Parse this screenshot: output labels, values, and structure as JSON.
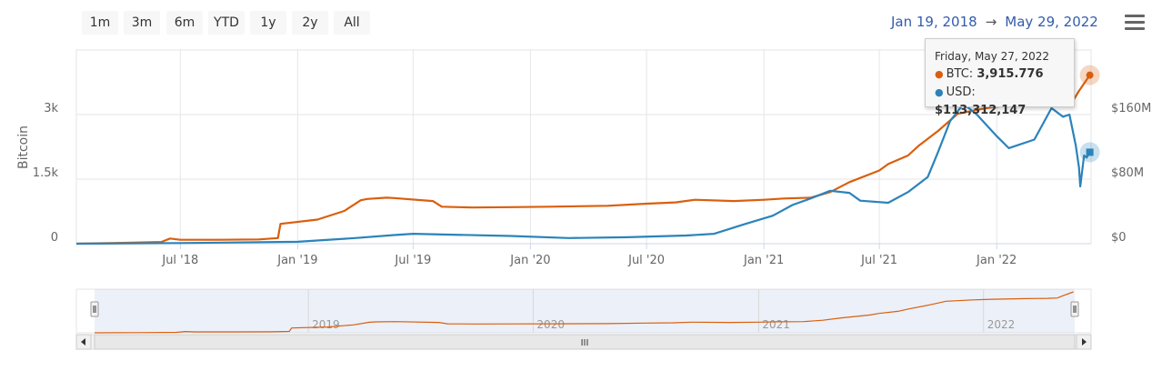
{
  "range_buttons": [
    "1m",
    "3m",
    "6m",
    "YTD",
    "1y",
    "2y",
    "All"
  ],
  "date_range": {
    "from": "Jan 19, 2018",
    "arrow": "→",
    "to": "May 29, 2022"
  },
  "tooltip": {
    "date": "Friday, May 27, 2022",
    "btc_label": "BTC:",
    "btc_value": "3,915.776",
    "usd_label": "USD:",
    "usd_value": "$113,312,147"
  },
  "navigator": {
    "scroll_label": "III",
    "years": [
      "2019",
      "2020",
      "2021",
      "2022"
    ]
  },
  "chart_data": {
    "type": "line",
    "ylabel_left": "Bitcoin",
    "yticks_left": [
      "0",
      "1.5k",
      "3k"
    ],
    "yticks_right": [
      "$0",
      "$80M",
      "$160M"
    ],
    "ylim_left": [
      0,
      4500
    ],
    "ylim_right": [
      0,
      240000000
    ],
    "xticks": [
      "Jul '18",
      "Jan '19",
      "Jul '19",
      "Jan '20",
      "Jul '20",
      "Jan '21",
      "Jul '21",
      "Jan '22"
    ],
    "colors": {
      "btc": "#d95f0e",
      "usd": "#2b83ba"
    },
    "series": [
      {
        "name": "BTC",
        "axis": "left",
        "x": [
          "2018-01-19",
          "2018-04-01",
          "2018-06-01",
          "2018-06-15",
          "2018-07-01",
          "2018-09-01",
          "2018-11-01",
          "2018-12-01",
          "2018-12-05",
          "2019-02-01",
          "2019-03-15",
          "2019-04-10",
          "2019-04-20",
          "2019-05-20",
          "2019-06-01",
          "2019-08-01",
          "2019-08-15",
          "2019-10-01",
          "2019-12-01",
          "2020-02-01",
          "2020-05-01",
          "2020-07-01",
          "2020-08-15",
          "2020-09-15",
          "2020-11-15",
          "2021-01-01",
          "2021-02-01",
          "2021-03-15",
          "2021-04-15",
          "2021-05-15",
          "2021-07-01",
          "2021-07-15",
          "2021-08-15",
          "2021-09-01",
          "2021-10-01",
          "2021-11-01",
          "2021-12-15",
          "2022-01-15",
          "2022-03-01",
          "2022-04-15",
          "2022-05-01",
          "2022-05-10",
          "2022-05-27"
        ],
        "values": [
          0,
          20,
          40,
          120,
          90,
          90,
          100,
          130,
          460,
          560,
          760,
          1010,
          1040,
          1070,
          1060,
          990,
          860,
          840,
          850,
          860,
          880,
          930,
          960,
          1020,
          990,
          1020,
          1050,
          1070,
          1200,
          1430,
          1700,
          1850,
          2050,
          2280,
          2620,
          3020,
          3150,
          3210,
          3260,
          3300,
          3330,
          3550,
          3916
        ]
      },
      {
        "name": "USD",
        "axis": "left",
        "x": [
          "2018-01-19",
          "2018-07-01",
          "2019-01-01",
          "2019-04-01",
          "2019-06-01",
          "2019-07-01",
          "2019-09-01",
          "2019-12-01",
          "2020-03-01",
          "2020-06-01",
          "2020-09-01",
          "2020-10-15",
          "2020-12-01",
          "2021-01-15",
          "2021-02-15",
          "2021-03-15",
          "2021-04-15",
          "2021-05-15",
          "2021-06-01",
          "2021-07-15",
          "2021-08-15",
          "2021-09-15",
          "2021-10-01",
          "2021-10-20",
          "2021-11-10",
          "2021-12-01",
          "2022-01-01",
          "2022-01-20",
          "2022-03-01",
          "2022-03-28",
          "2022-04-15",
          "2022-04-25",
          "2022-05-05",
          "2022-05-10",
          "2022-05-12",
          "2022-05-18",
          "2022-05-22",
          "2022-05-27"
        ],
        "values": [
          0,
          15,
          45,
          130,
          200,
          230,
          210,
          180,
          130,
          150,
          190,
          230,
          450,
          650,
          900,
          1050,
          1230,
          1180,
          1000,
          950,
          1200,
          1550,
          2130,
          2850,
          3250,
          3000,
          2500,
          2220,
          2420,
          3150,
          2950,
          3000,
          2280,
          1770,
          1330,
          2050,
          2000,
          2125
        ]
      }
    ]
  }
}
